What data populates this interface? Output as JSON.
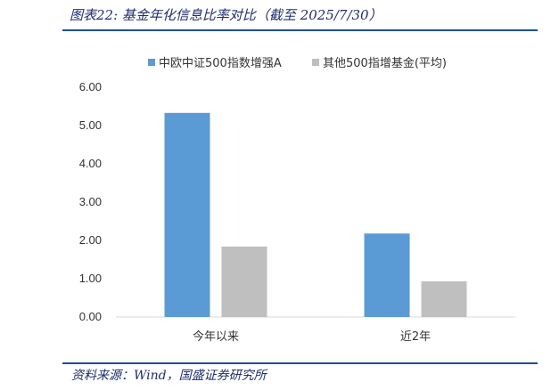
{
  "header": {
    "title": "图表22:  基金年化信息比率对比（截至 2025/7/30）"
  },
  "footer": {
    "source": "资料来源：Wind，国盛证券研究所"
  },
  "chart_data": {
    "type": "bar",
    "categories": [
      "今年以来",
      "近2年"
    ],
    "series": [
      {
        "name": "中欧中证500指数增强A",
        "values": [
          5.33,
          2.18
        ],
        "color": "#5b9bd5"
      },
      {
        "name": "其他500指增基金(平均)",
        "values": [
          1.84,
          0.93
        ],
        "color": "#bfbfbf"
      }
    ],
    "ylim": [
      0,
      6
    ],
    "yticks": [
      "0.00",
      "1.00",
      "2.00",
      "3.00",
      "4.00",
      "5.00",
      "6.00"
    ],
    "legend": "top",
    "grid": false
  }
}
